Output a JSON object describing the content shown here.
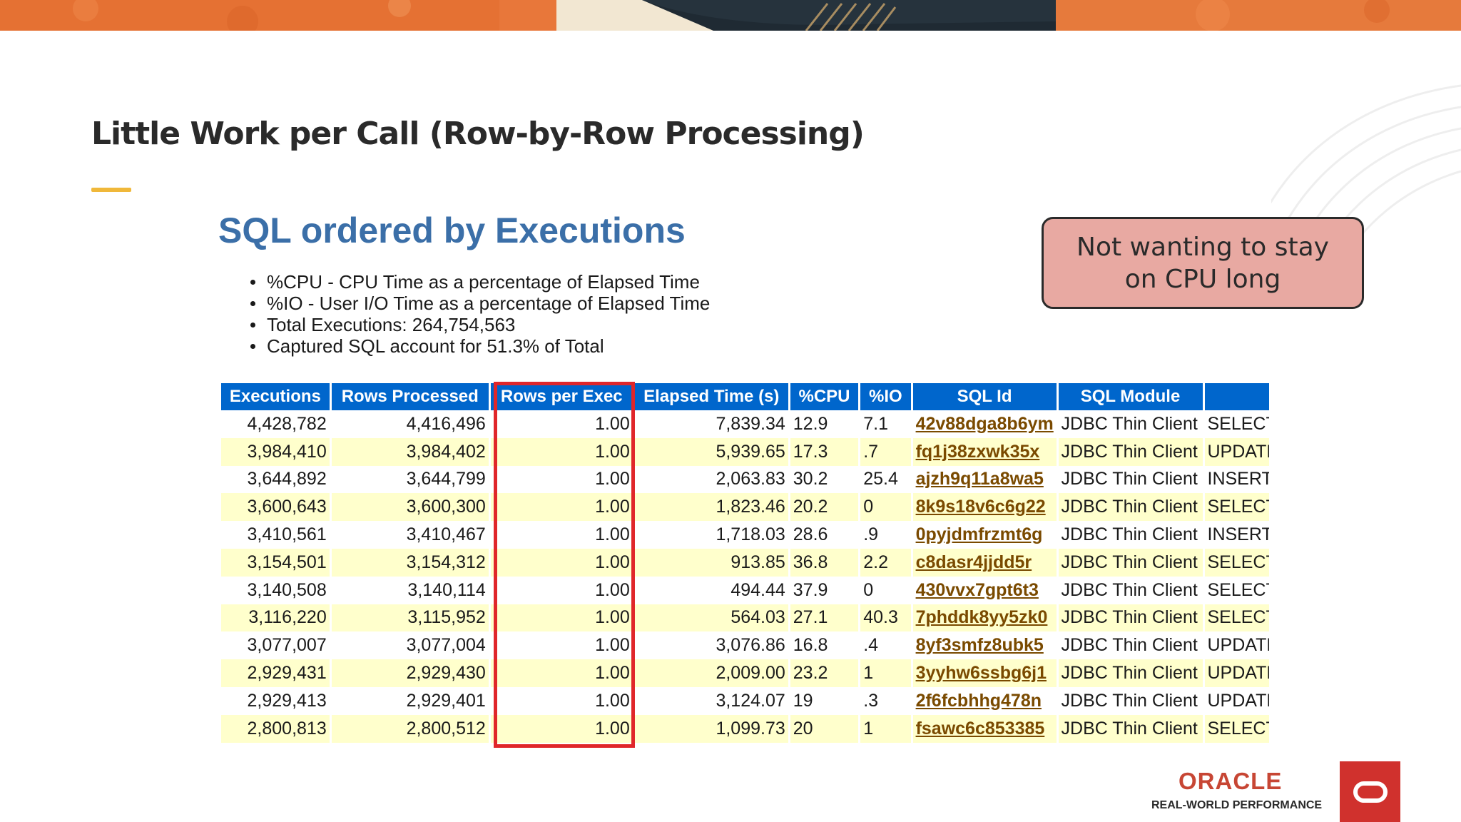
{
  "slide": {
    "title": "Little Work per Call (Row-by-Row Processing)",
    "accent_color": "#f0b83a"
  },
  "report": {
    "title": "SQL ordered by Executions",
    "title_color": "#3b6fa8",
    "bullets": [
      "%CPU - CPU Time as a percentage of Elapsed Time",
      "%IO - User I/O Time as a percentage of Elapsed Time",
      "Total Executions: 264,754,563",
      "Captured SQL account for 51.3% of Total"
    ]
  },
  "callout": {
    "text": "Not wanting to stay on CPU long",
    "background": "#e8a9a2"
  },
  "table": {
    "header_color": "#0066cc",
    "alt_row_color": "#ffffcc",
    "highlight_color": "#e0262a",
    "columns": [
      "Executions",
      "Rows Processed",
      "Rows per Exec",
      "Elapsed Time (s)",
      "%CPU",
      "%IO",
      "SQL Id",
      "SQL Module",
      ""
    ],
    "rows": [
      {
        "executions": "4,428,782",
        "rows_processed": "4,416,496",
        "rows_per_exec": "1.00",
        "elapsed": "7,839.34",
        "cpu": "12.9",
        "io": "7.1",
        "sql_id": "42v88dga8b6ym",
        "module": "JDBC Thin Client",
        "text": "SELECT"
      },
      {
        "executions": "3,984,410",
        "rows_processed": "3,984,402",
        "rows_per_exec": "1.00",
        "elapsed": "5,939.65",
        "cpu": "17.3",
        "io": ".7",
        "sql_id": "fq1j38zxwk35x",
        "module": "JDBC Thin Client",
        "text": "UPDATE"
      },
      {
        "executions": "3,644,892",
        "rows_processed": "3,644,799",
        "rows_per_exec": "1.00",
        "elapsed": "2,063.83",
        "cpu": "30.2",
        "io": "25.4",
        "sql_id": "ajzh9q11a8wa5",
        "module": "JDBC Thin Client",
        "text": "INSERT"
      },
      {
        "executions": "3,600,643",
        "rows_processed": "3,600,300",
        "rows_per_exec": "1.00",
        "elapsed": "1,823.46",
        "cpu": "20.2",
        "io": "0",
        "sql_id": "8k9s18v6c6g22",
        "module": "JDBC Thin Client",
        "text": "SELECT"
      },
      {
        "executions": "3,410,561",
        "rows_processed": "3,410,467",
        "rows_per_exec": "1.00",
        "elapsed": "1,718.03",
        "cpu": "28.6",
        "io": ".9",
        "sql_id": "0pyjdmfrzmt6g",
        "module": "JDBC Thin Client",
        "text": "INSERT"
      },
      {
        "executions": "3,154,501",
        "rows_processed": "3,154,312",
        "rows_per_exec": "1.00",
        "elapsed": "913.85",
        "cpu": "36.8",
        "io": "2.2",
        "sql_id": "c8dasr4jjdd5r",
        "module": "JDBC Thin Client",
        "text": "SELECT"
      },
      {
        "executions": "3,140,508",
        "rows_processed": "3,140,114",
        "rows_per_exec": "1.00",
        "elapsed": "494.44",
        "cpu": "37.9",
        "io": "0",
        "sql_id": "430vvx7gpt6t3",
        "module": "JDBC Thin Client",
        "text": "SELECT"
      },
      {
        "executions": "3,116,220",
        "rows_processed": "3,115,952",
        "rows_per_exec": "1.00",
        "elapsed": "564.03",
        "cpu": "27.1",
        "io": "40.3",
        "sql_id": "7phddk8yy5zk0",
        "module": "JDBC Thin Client",
        "text": "SELECT"
      },
      {
        "executions": "3,077,007",
        "rows_processed": "3,077,004",
        "rows_per_exec": "1.00",
        "elapsed": "3,076.86",
        "cpu": "16.8",
        "io": ".4",
        "sql_id": "8yf3smfz8ubk5",
        "module": "JDBC Thin Client",
        "text": "UPDATE"
      },
      {
        "executions": "2,929,431",
        "rows_processed": "2,929,430",
        "rows_per_exec": "1.00",
        "elapsed": "2,009.00",
        "cpu": "23.2",
        "io": "1",
        "sql_id": "3yyhw6ssbg6j1",
        "module": "JDBC Thin Client",
        "text": "UPDATE"
      },
      {
        "executions": "2,929,413",
        "rows_processed": "2,929,401",
        "rows_per_exec": "1.00",
        "elapsed": "3,124.07",
        "cpu": "19",
        "io": ".3",
        "sql_id": "2f6fcbhhg478n",
        "module": "JDBC Thin Client",
        "text": "UPDATE"
      },
      {
        "executions": "2,800,813",
        "rows_processed": "2,800,512",
        "rows_per_exec": "1.00",
        "elapsed": "1,099.73",
        "cpu": "20",
        "io": "1",
        "sql_id": "fsawc6c853385",
        "module": "JDBC Thin Client",
        "text": "SELECT"
      }
    ]
  },
  "logo": {
    "brand": "ORACLE",
    "tagline": "REAL-WORLD PERFORMANCE",
    "brand_color": "#c74634",
    "square_color": "#d0312d"
  }
}
